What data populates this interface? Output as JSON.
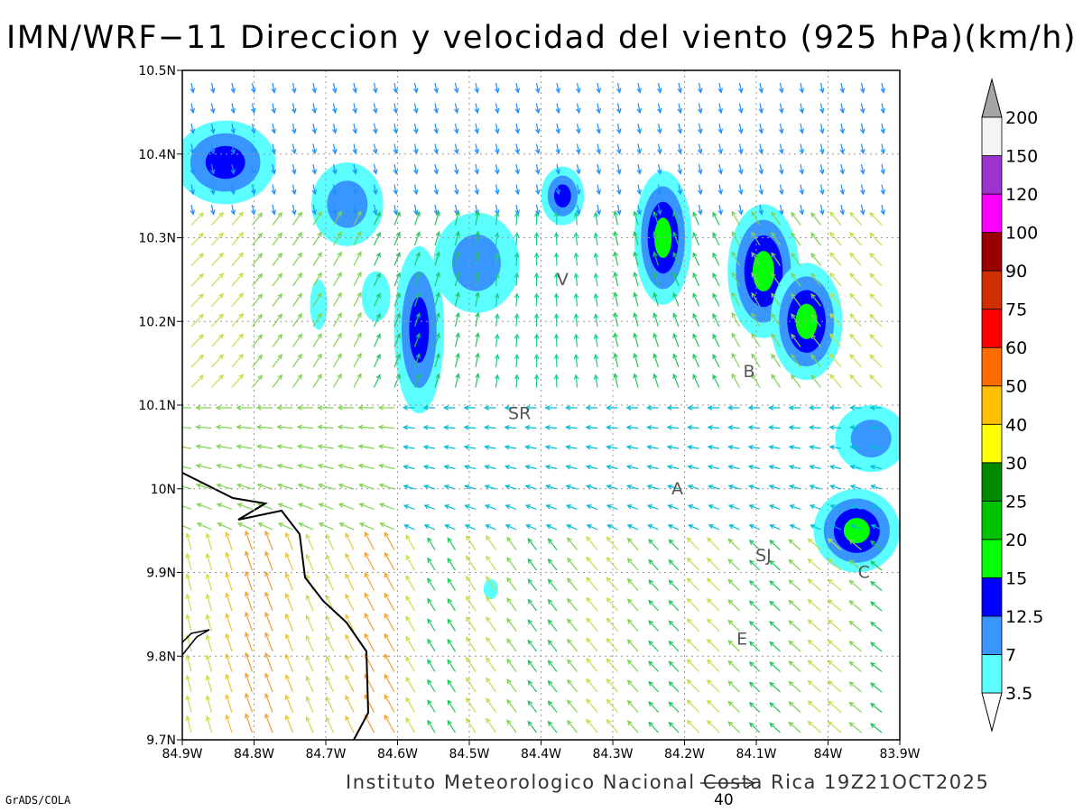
{
  "title": "IMN/WRF−11 Direccion y velocidad del viento (925 hPa)(km/h)",
  "footer": "Instituto Meteorologico Nacional Costa Rica 19Z21OCT2025",
  "credit": "GrADS/COLA",
  "reference_vector": {
    "value": "40"
  },
  "map": {
    "lon_range": [
      -84.9,
      -83.9
    ],
    "lat_range": [
      9.7,
      10.5
    ],
    "grid": true,
    "x_ticks": [
      "84.9W",
      "84.8W",
      "84.7W",
      "84.6W",
      "84.5W",
      "84.4W",
      "84.3W",
      "84.2W",
      "84.1W",
      "84W",
      "83.9W"
    ],
    "y_ticks": [
      "9.7N",
      "9.8N",
      "9.9N",
      "10N",
      "10.1N",
      "10.2N",
      "10.3N",
      "10.4N",
      "10.5N"
    ],
    "places": [
      {
        "label": "V",
        "lon": -84.37,
        "lat": 10.25
      },
      {
        "label": "SR",
        "lon": -84.43,
        "lat": 10.09
      },
      {
        "label": "B",
        "lon": -84.11,
        "lat": 10.14
      },
      {
        "label": "A",
        "lon": -84.21,
        "lat": 10.0
      },
      {
        "label": "SJ",
        "lon": -84.09,
        "lat": 9.92
      },
      {
        "label": "C",
        "lon": -83.95,
        "lat": 9.9
      },
      {
        "label": "E",
        "lon": -84.12,
        "lat": 9.82
      }
    ]
  },
  "colorbar": {
    "levels": [
      "3.5",
      "7",
      "12.5",
      "15",
      "20",
      "25",
      "30",
      "40",
      "50",
      "60",
      "75",
      "90",
      "100",
      "120",
      "150",
      "200"
    ],
    "colors": [
      "#ffffff",
      "#5bffff",
      "#3a96ff",
      "#0000ff",
      "#05ff05",
      "#00c300",
      "#008a00",
      "#ffff00",
      "#ffc000",
      "#ff6d00",
      "#ff0000",
      "#d03000",
      "#9a0000",
      "#ff00ff",
      "#9b33cc",
      "#f4f4f4",
      "#a5a5a5"
    ]
  },
  "speed_regions": [
    {
      "lon": -84.84,
      "lat": 10.39,
      "rx": 0.07,
      "ry": 0.05,
      "peak": 3
    },
    {
      "lon": -84.67,
      "lat": 10.34,
      "rx": 0.05,
      "ry": 0.05,
      "peak": 2
    },
    {
      "lon": -84.57,
      "lat": 10.19,
      "rx": 0.035,
      "ry": 0.1,
      "peak": 3
    },
    {
      "lon": -84.49,
      "lat": 10.27,
      "rx": 0.06,
      "ry": 0.06,
      "peak": 2
    },
    {
      "lon": -84.37,
      "lat": 10.35,
      "rx": 0.03,
      "ry": 0.035,
      "peak": 3
    },
    {
      "lon": -84.23,
      "lat": 10.3,
      "rx": 0.04,
      "ry": 0.08,
      "peak": 4
    },
    {
      "lon": -84.09,
      "lat": 10.26,
      "rx": 0.05,
      "ry": 0.08,
      "peak": 4
    },
    {
      "lon": -84.03,
      "lat": 10.2,
      "rx": 0.05,
      "ry": 0.07,
      "peak": 4
    },
    {
      "lon": -83.96,
      "lat": 9.95,
      "rx": 0.06,
      "ry": 0.05,
      "peak": 4
    },
    {
      "lon": -83.94,
      "lat": 10.06,
      "rx": 0.05,
      "ry": 0.04,
      "peak": 2
    },
    {
      "lon": -84.63,
      "lat": 10.23,
      "rx": 0.02,
      "ry": 0.03,
      "peak": 1
    },
    {
      "lon": -84.71,
      "lat": 10.22,
      "rx": 0.012,
      "ry": 0.03,
      "peak": 1
    },
    {
      "lon": -84.47,
      "lat": 9.88,
      "rx": 0.01,
      "ry": 0.012,
      "peak": 1
    }
  ]
}
